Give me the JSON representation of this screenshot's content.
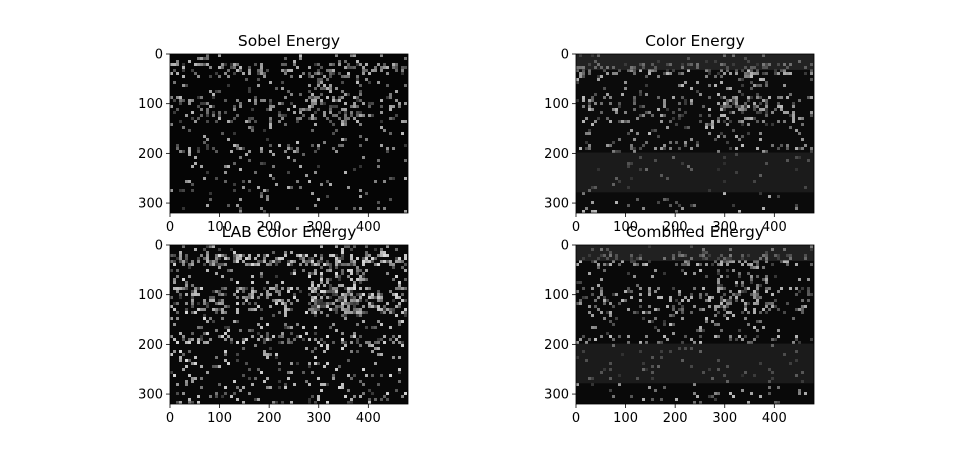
{
  "chart_data": [
    {
      "type": "heatmap",
      "title": "Sobel Energy",
      "colormap": "gray",
      "background": "#050505",
      "xlim": [
        0,
        480
      ],
      "ylim": [
        320,
        0
      ],
      "xticks": [
        0,
        100,
        200,
        300,
        400
      ],
      "yticks": [
        0,
        100,
        200,
        300
      ],
      "grid": false
    },
    {
      "type": "heatmap",
      "title": "Color Energy",
      "colormap": "gray",
      "background": "#0b0b0b",
      "xlim": [
        0,
        480
      ],
      "ylim": [
        320,
        0
      ],
      "xticks": [
        0,
        100,
        200,
        300,
        400
      ],
      "yticks": [
        0,
        100,
        200,
        300
      ],
      "grid": false
    },
    {
      "type": "heatmap",
      "title": "LAB Color Energy",
      "colormap": "gray",
      "background": "#080808",
      "xlim": [
        0,
        480
      ],
      "ylim": [
        320,
        0
      ],
      "xticks": [
        0,
        100,
        200,
        300,
        400
      ],
      "yticks": [
        0,
        100,
        200,
        300
      ],
      "grid": false
    },
    {
      "type": "heatmap",
      "title": "Combined Energy",
      "colormap": "gray",
      "background": "#090909",
      "xlim": [
        0,
        480
      ],
      "ylim": [
        320,
        0
      ],
      "xticks": [
        0,
        100,
        200,
        300,
        400
      ],
      "yticks": [
        0,
        100,
        200,
        300
      ],
      "grid": false
    }
  ]
}
